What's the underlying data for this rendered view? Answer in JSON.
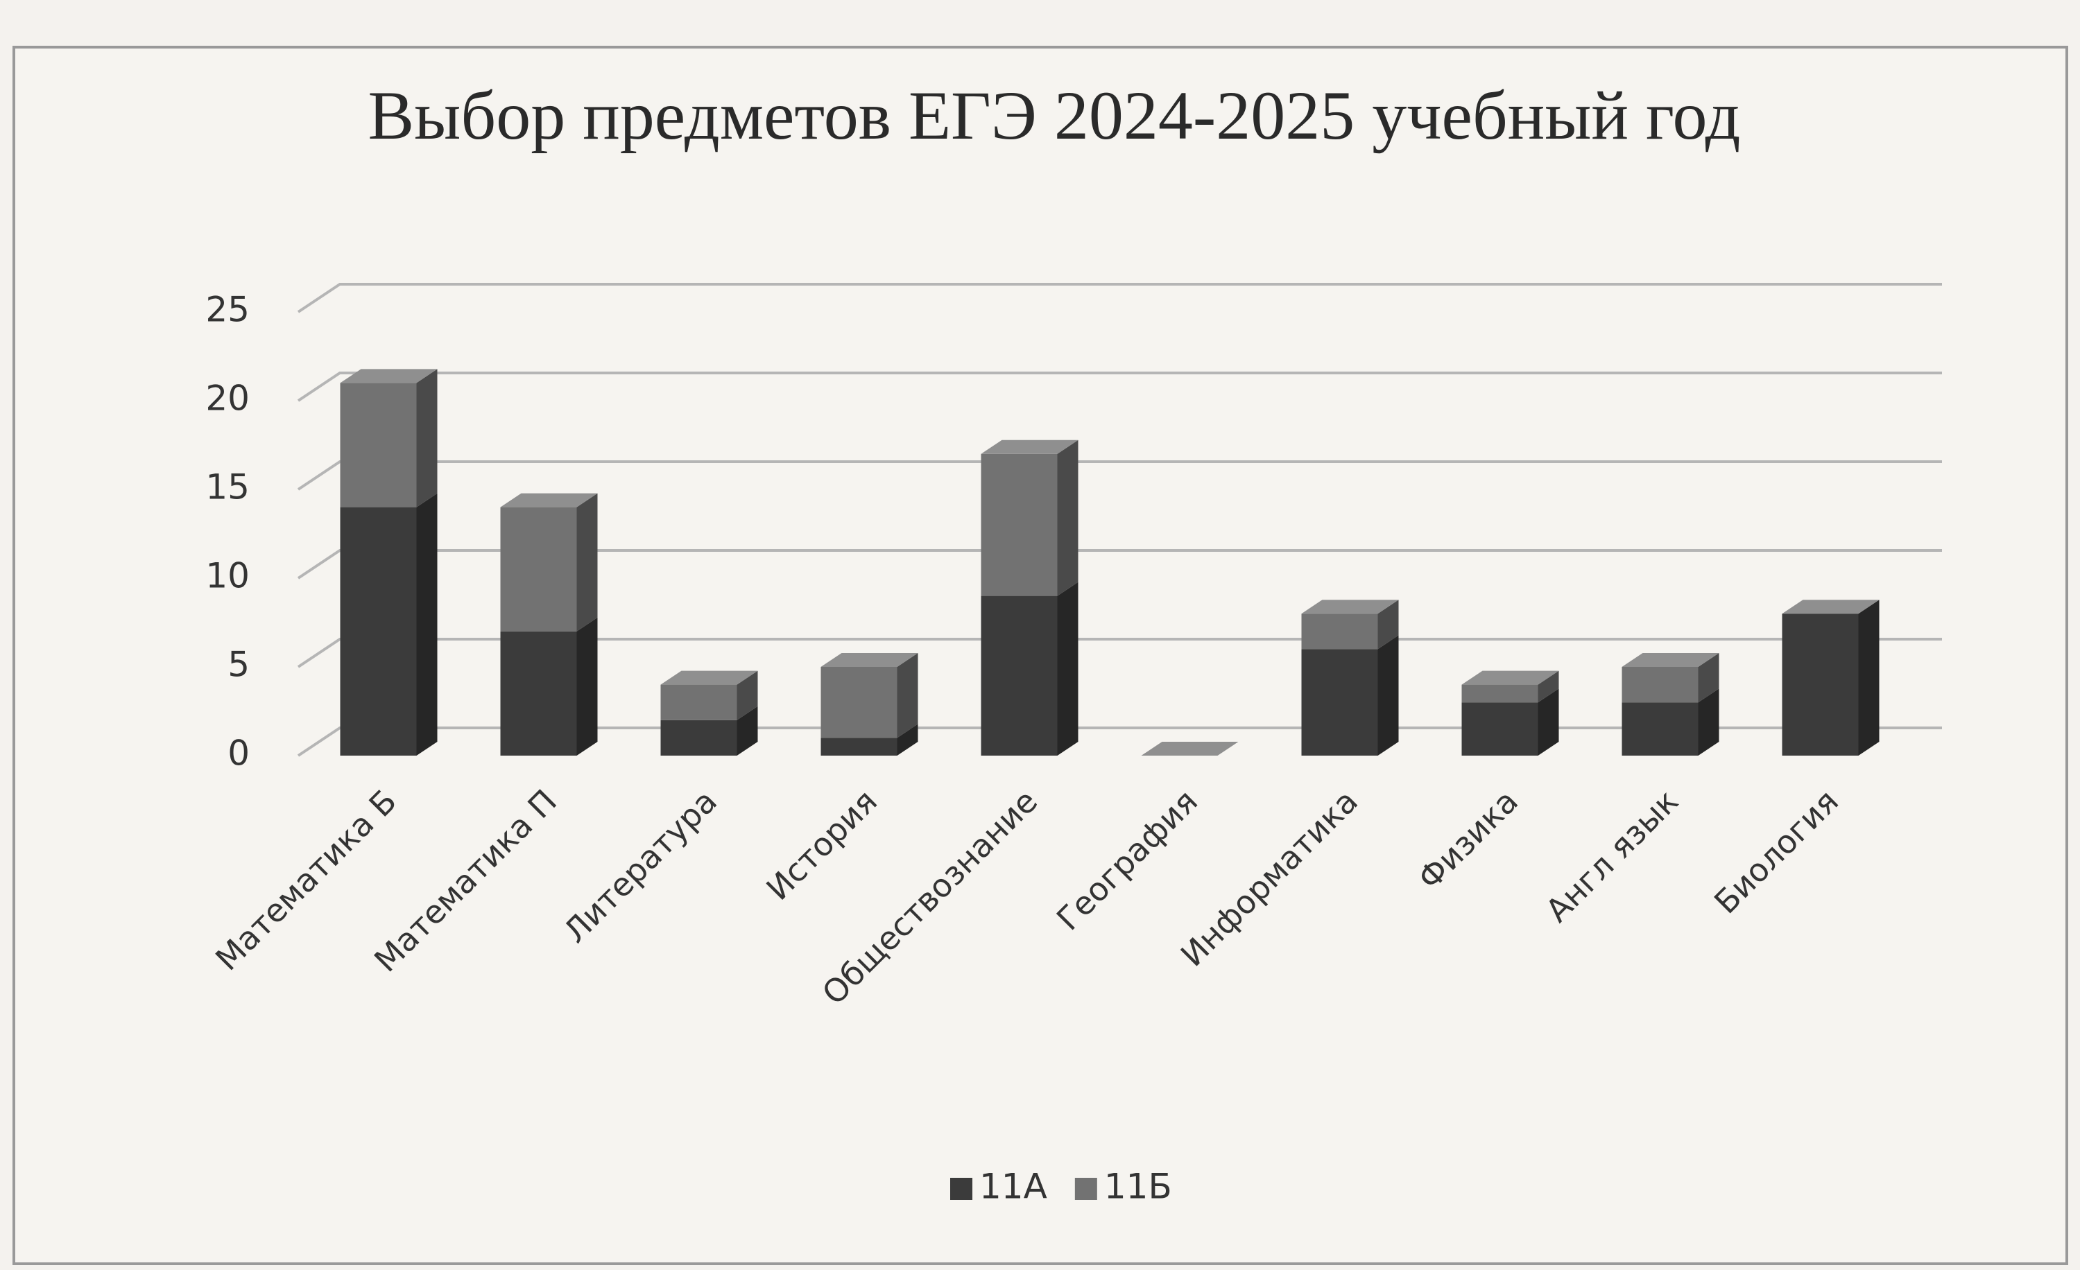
{
  "chart_data": {
    "type": "bar",
    "stacked": true,
    "title": "Выбор предметов ЕГЭ 2024-2025  учебный год",
    "categories": [
      "Математика Б",
      "Математика П",
      "Литература",
      "История",
      "Обществознание",
      "География",
      "Информатика",
      "Физика",
      "Англ язык",
      "Биология"
    ],
    "series": [
      {
        "name": "11А",
        "color": "#3b3b3b",
        "values": [
          14,
          7,
          2,
          1,
          9,
          0,
          6,
          3,
          3,
          8
        ]
      },
      {
        "name": "11Б",
        "color": "#727272",
        "values": [
          7,
          7,
          2,
          4,
          8,
          0,
          2,
          1,
          2,
          0
        ]
      }
    ],
    "ylim": [
      0,
      25
    ],
    "yticks": [
      0,
      5,
      10,
      15,
      20,
      25
    ],
    "grid": true,
    "legend": "bottom"
  }
}
